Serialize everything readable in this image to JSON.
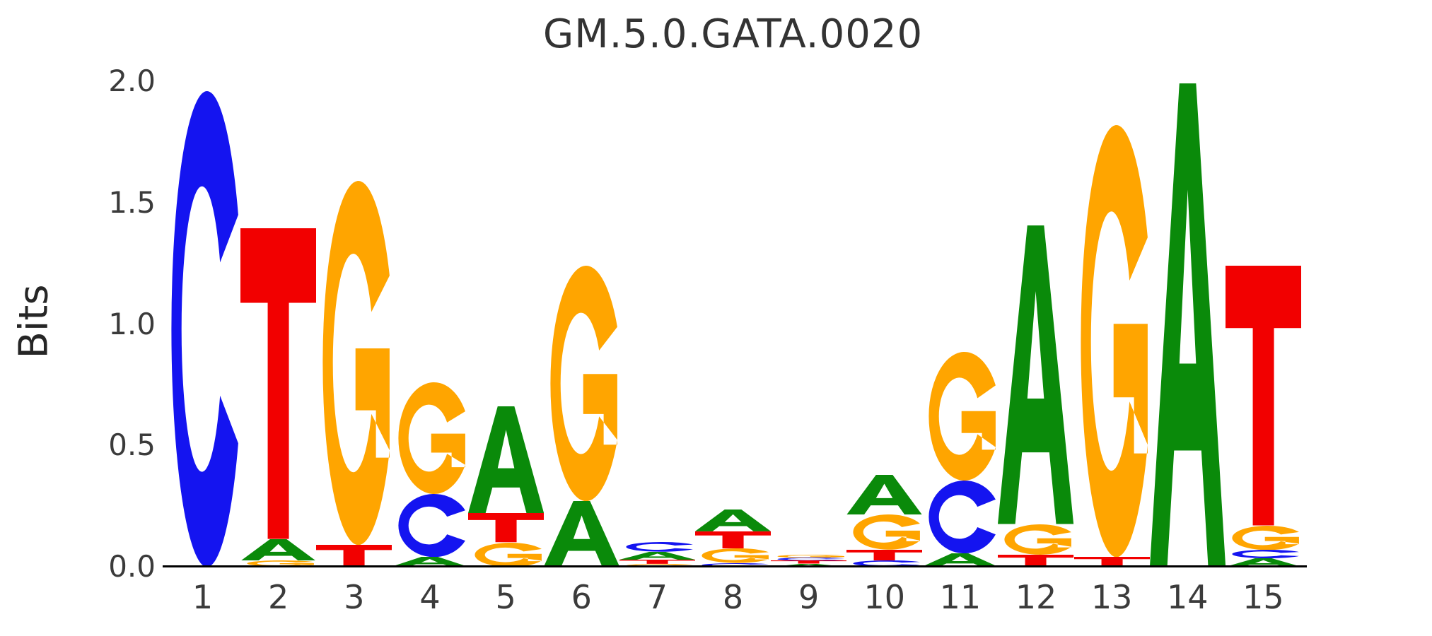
{
  "figure": {
    "background_color": "#ffffff",
    "title": "GM.5.0.GATA.0020"
  },
  "chart_data": {
    "type": "sequence_logo",
    "title": "GM.5.0.GATA.0020",
    "ylabel": "Bits",
    "ylim": [
      0.0,
      2.0
    ],
    "yticks": [
      "2.0",
      "1.5",
      "1.0",
      "0.5",
      "0.0"
    ],
    "ytick_values": [
      2.0,
      1.5,
      1.0,
      0.5,
      0.0
    ],
    "xticks": [
      "1",
      "2",
      "3",
      "4",
      "5",
      "6",
      "7",
      "8",
      "9",
      "10",
      "11",
      "12",
      "13",
      "14",
      "15"
    ],
    "grid": false,
    "legend": false,
    "base_colors": {
      "A": "#0a8a0a",
      "C": "#1414f0",
      "G": "#ffa500",
      "T": "#f20000"
    },
    "positions": [
      {
        "position": 1,
        "stack": [
          {
            "base": "C",
            "bits": 1.96
          }
        ]
      },
      {
        "position": 2,
        "stack": [
          {
            "base": "G",
            "bits": 0.025
          },
          {
            "base": "A",
            "bits": 0.09
          },
          {
            "base": "T",
            "bits": 1.28
          }
        ]
      },
      {
        "position": 3,
        "stack": [
          {
            "base": "T",
            "bits": 0.09
          },
          {
            "base": "G",
            "bits": 1.5
          }
        ]
      },
      {
        "position": 4,
        "stack": [
          {
            "base": "A",
            "bits": 0.04
          },
          {
            "base": "C",
            "bits": 0.26
          },
          {
            "base": "G",
            "bits": 0.46
          }
        ]
      },
      {
        "position": 5,
        "stack": [
          {
            "base": "G",
            "bits": 0.1
          },
          {
            "base": "T",
            "bits": 0.12
          },
          {
            "base": "A",
            "bits": 0.44
          }
        ]
      },
      {
        "position": 6,
        "stack": [
          {
            "base": "A",
            "bits": 0.27
          },
          {
            "base": "G",
            "bits": 0.97
          }
        ]
      },
      {
        "position": 7,
        "stack": [
          {
            "base": "G",
            "bits": 0.013
          },
          {
            "base": "T",
            "bits": 0.017
          },
          {
            "base": "A",
            "bits": 0.032
          },
          {
            "base": "C",
            "bits": 0.04
          }
        ]
      },
      {
        "position": 8,
        "stack": [
          {
            "base": "C",
            "bits": 0.015
          },
          {
            "base": "G",
            "bits": 0.06
          },
          {
            "base": "T",
            "bits": 0.07
          },
          {
            "base": "A",
            "bits": 0.09
          }
        ]
      },
      {
        "position": 9,
        "stack": [
          {
            "base": "A",
            "bits": 0.012
          },
          {
            "base": "T",
            "bits": 0.013
          },
          {
            "base": "C",
            "bits": 0.013
          },
          {
            "base": "G",
            "bits": 0.013
          }
        ]
      },
      {
        "position": 10,
        "stack": [
          {
            "base": "C",
            "bits": 0.025
          },
          {
            "base": "T",
            "bits": 0.045
          },
          {
            "base": "G",
            "bits": 0.145
          },
          {
            "base": "A",
            "bits": 0.165
          }
        ]
      },
      {
        "position": 11,
        "stack": [
          {
            "base": "A",
            "bits": 0.055
          },
          {
            "base": "C",
            "bits": 0.3
          },
          {
            "base": "G",
            "bits": 0.53
          }
        ]
      },
      {
        "position": 12,
        "stack": [
          {
            "base": "T",
            "bits": 0.05
          },
          {
            "base": "G",
            "bits": 0.125
          },
          {
            "base": "A",
            "bits": 1.23
          }
        ]
      },
      {
        "position": 13,
        "stack": [
          {
            "base": "T",
            "bits": 0.04
          },
          {
            "base": "G",
            "bits": 1.78
          }
        ]
      },
      {
        "position": 14,
        "stack": [
          {
            "base": "A",
            "bits": 1.99
          }
        ]
      },
      {
        "position": 15,
        "stack": [
          {
            "base": "A",
            "bits": 0.035
          },
          {
            "base": "C",
            "bits": 0.035
          },
          {
            "base": "G",
            "bits": 0.1
          },
          {
            "base": "T",
            "bits": 1.07
          }
        ]
      }
    ]
  }
}
